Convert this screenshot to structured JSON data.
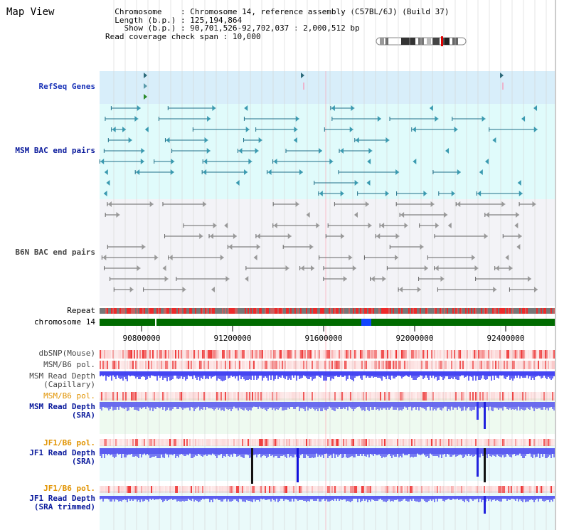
{
  "title": "Map View",
  "header": {
    "chromosome_label": "Chromosome",
    "chromosome_value": "Chromosome 14, reference assembly (C57BL/6J) (Build 37)",
    "length_label": "Length (b.p.)",
    "length_value": "125,194,864",
    "show_label": "Show (b.p.)",
    "show_value": "90,701,526-92,702,037 : 2,000,512 bp",
    "coverage_label": "Read coverage check span",
    "coverage_value": "10,000"
  },
  "tracks": {
    "refseq": "RefSeq Genes",
    "msm_bac": "MSM BAC end pairs",
    "b6n_bac": "B6N BAC end pairs",
    "repeat": "Repeat",
    "chromosome": "chromosome 14",
    "dbsnp": "dbSNP(Mouse)",
    "msm_pol_1": "MSM/B6 pol.",
    "msm_depth_cap_1": "MSM Read Depth",
    "msm_depth_cap_2": "(Capillary)",
    "msm_pol_2": "MSM/B6 pol.",
    "msm_depth_sra_1": "MSM Read Depth",
    "msm_depth_sra_2": "(SRA)",
    "jf1_pol_1": "JF1/B6 pol.",
    "jf1_depth_sra_1": "JF1 Read Depth",
    "jf1_depth_sra_2": "(SRA)",
    "jf1_pol_2": "JF1/B6 pol.",
    "jf1_depth_trim_1": "JF1 Read Depth",
    "jf1_depth_trim_2": "(SRA trimmed)"
  },
  "axis": {
    "ticks": [
      "90800000",
      "91200000",
      "91600000",
      "92000000",
      "92400000"
    ]
  },
  "colors": {
    "refseq_bg": "#d8eefa",
    "msm_bg": "#e0fbfb",
    "b6n_bg": "#f3f3f7",
    "chromosome_band": "#006b00",
    "depth_blue": "#3030ee",
    "snp_red": "#ee3333",
    "grid": "#cfcfcf"
  }
}
